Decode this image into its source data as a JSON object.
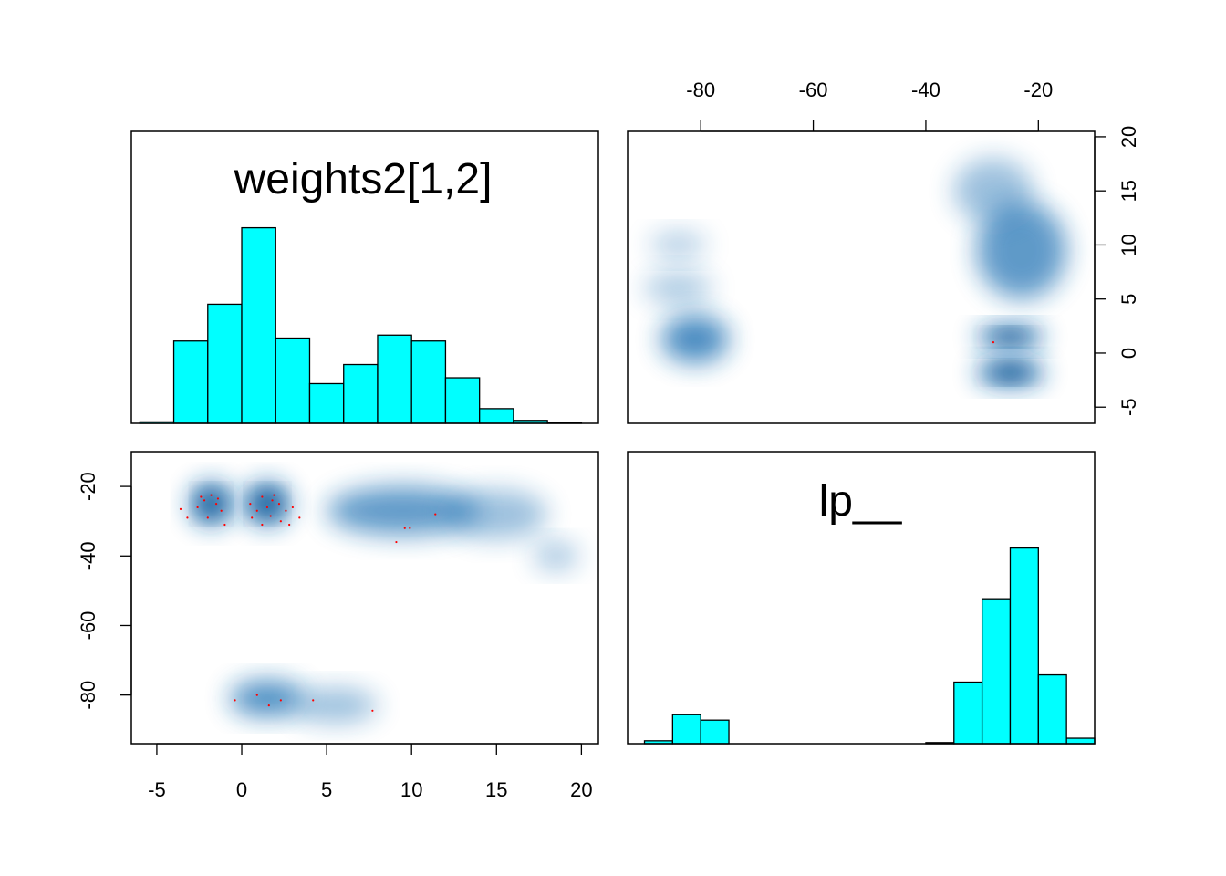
{
  "colors": {
    "histogram_fill": "#00ffff",
    "density_color": "#1f6fb2",
    "point_color": "#ff0000"
  },
  "chart_data": [
    {
      "panel": "top-left",
      "type": "bar",
      "title": "weights2[1,2]",
      "bin_edges": [
        -6,
        -4,
        -2,
        0,
        2,
        4,
        6,
        8,
        10,
        12,
        14,
        16,
        18,
        20
      ],
      "values": [
        0.01,
        0.56,
        0.81,
        1.33,
        0.58,
        0.27,
        0.4,
        0.6,
        0.56,
        0.31,
        0.1,
        0.02,
        0.005
      ],
      "xlim": [
        -6.5,
        21
      ]
    },
    {
      "panel": "top-right",
      "type": "heatmap",
      "xlabel_ticks": [
        "-80",
        "-60",
        "-40",
        "-20"
      ],
      "x_ticks": [
        -80,
        -60,
        -40,
        -20
      ],
      "y_ticks": [
        -5,
        0,
        5,
        10,
        15,
        20
      ],
      "y_tick_labels": [
        "-5",
        "0",
        "5",
        "10",
        "15",
        "20"
      ],
      "xlim": [
        -93,
        -10
      ],
      "ylim": [
        -6.5,
        20.5
      ],
      "density_regions": [
        {
          "x": -81,
          "y": 1.3,
          "sx": 6,
          "sy": 2.2,
          "weight": 0.75
        },
        {
          "x": -84,
          "y": 6,
          "sx": 6,
          "sy": 1.5,
          "weight": 0.15
        },
        {
          "x": -84,
          "y": 10,
          "sx": 5,
          "sy": 1.2,
          "weight": 0.12
        },
        {
          "x": -25,
          "y": 1.5,
          "sx": 6,
          "sy": 1.0,
          "weight": 1.0
        },
        {
          "x": -25,
          "y": -1.8,
          "sx": 6,
          "sy": 1.2,
          "weight": 1.0
        },
        {
          "x": -23,
          "y": 9.5,
          "sx": 8,
          "sy": 4.5,
          "weight": 0.6
        },
        {
          "x": -28,
          "y": 15,
          "sx": 7,
          "sy": 3.0,
          "weight": 0.25
        }
      ],
      "outlier_points": [
        [
          -28,
          1.0
        ]
      ]
    },
    {
      "panel": "bottom-left",
      "type": "heatmap",
      "x_ticks": [
        -5,
        0,
        5,
        10,
        15,
        20
      ],
      "x_tick_labels": [
        "-5",
        "0",
        "5",
        "10",
        "15",
        "20"
      ],
      "y_ticks": [
        -80,
        -60,
        -40,
        -20
      ],
      "y_tick_labels": [
        "-80",
        "-60",
        "-40",
        "-20"
      ],
      "xlim": [
        -6.5,
        21
      ],
      "ylim": [
        -94,
        -10
      ],
      "density_regions": [
        {
          "x": -1.8,
          "y": -25,
          "sx": 1.2,
          "sy": 6,
          "weight": 1.0
        },
        {
          "x": 1.5,
          "y": -25,
          "sx": 1.3,
          "sy": 6,
          "weight": 1.0
        },
        {
          "x": 9.5,
          "y": -27,
          "sx": 4.5,
          "sy": 7,
          "weight": 0.6
        },
        {
          "x": 15,
          "y": -28,
          "sx": 3.0,
          "sy": 7,
          "weight": 0.25
        },
        {
          "x": 18.5,
          "y": -40,
          "sx": 1.3,
          "sy": 4,
          "weight": 0.2
        },
        {
          "x": 1.5,
          "y": -81,
          "sx": 2.2,
          "sy": 5,
          "weight": 0.75
        },
        {
          "x": 5.5,
          "y": -83,
          "sx": 2.5,
          "sy": 5,
          "weight": 0.25
        }
      ],
      "outlier_points": [
        [
          -2.2,
          -24
        ],
        [
          -1.8,
          -22.5
        ],
        [
          -1.5,
          -25
        ],
        [
          -2.6,
          -26
        ],
        [
          -1.2,
          -27
        ],
        [
          -2.0,
          -29
        ],
        [
          -3.2,
          -29
        ],
        [
          -1.0,
          -31
        ],
        [
          -3.6,
          -26.5
        ],
        [
          -2.4,
          -23
        ],
        [
          -1.4,
          -23.5
        ],
        [
          1.2,
          -23
        ],
        [
          1.8,
          -24
        ],
        [
          1.5,
          -26
        ],
        [
          2.2,
          -25
        ],
        [
          0.9,
          -27
        ],
        [
          1.7,
          -28.5
        ],
        [
          2.6,
          -27
        ],
        [
          0.6,
          -29
        ],
        [
          1.2,
          -31
        ],
        [
          2.8,
          -31
        ],
        [
          3.4,
          -29
        ],
        [
          3.0,
          -26
        ],
        [
          1.9,
          -22.5
        ],
        [
          0.5,
          -25
        ],
        [
          2.3,
          -30
        ],
        [
          9.6,
          -32
        ],
        [
          9.9,
          -32
        ],
        [
          11.4,
          -28
        ],
        [
          9.1,
          -36
        ],
        [
          -0.4,
          -81.5
        ],
        [
          0.9,
          -80
        ],
        [
          1.6,
          -83
        ],
        [
          2.3,
          -81.5
        ],
        [
          4.2,
          -81.5
        ],
        [
          7.7,
          -84.5
        ]
      ]
    },
    {
      "panel": "bottom-right",
      "type": "bar",
      "title": "lp__",
      "bin_edges": [
        -90,
        -85,
        -80,
        -75,
        -70,
        -65,
        -60,
        -55,
        -50,
        -45,
        -40,
        -35,
        -30,
        -25,
        -20,
        -15,
        -10
      ],
      "values": [
        0.008,
        0.08,
        0.065,
        0,
        0,
        0,
        0,
        0,
        0,
        0,
        0.003,
        0.17,
        0.4,
        0.54,
        0.19,
        0.015
      ],
      "xlim": [
        -93,
        -10
      ]
    }
  ]
}
